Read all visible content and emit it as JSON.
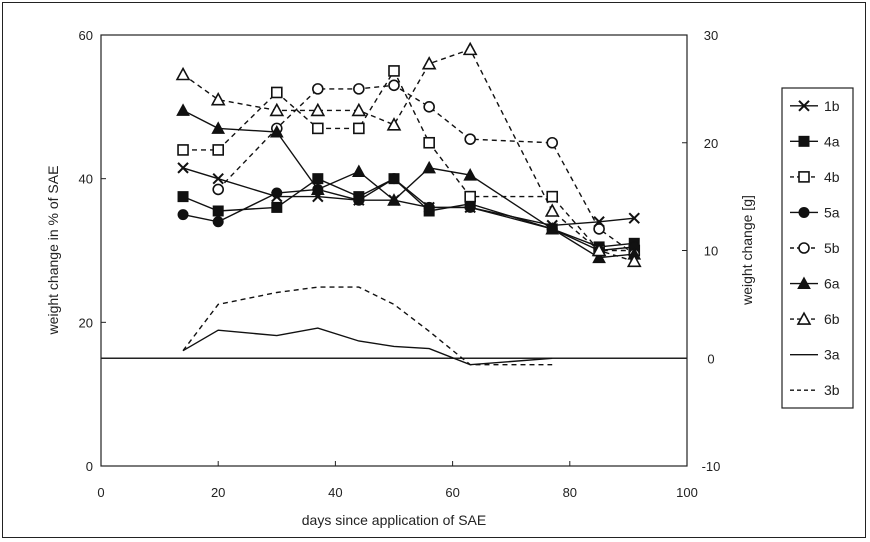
{
  "chart_data": {
    "type": "line",
    "xlabel": "days since application of SAE",
    "ylabel": "weight change in % of SAE",
    "y2label": "weight change [g]",
    "xlim": [
      0,
      100
    ],
    "ylim": [
      0,
      60
    ],
    "y2lim": [
      -10,
      30
    ],
    "xticks": [
      "0",
      "20",
      "40",
      "60",
      "80",
      "100"
    ],
    "yticks": [
      "0",
      "20",
      "40",
      "60"
    ],
    "y2ticks": [
      "-10",
      "0",
      "10",
      "20",
      "30"
    ],
    "grid": false,
    "legend_position": "right",
    "series": [
      {
        "name": "1b",
        "axis": "left",
        "marker": "x",
        "dash": false,
        "x": [
          14,
          20,
          30,
          37,
          44,
          50,
          56,
          63,
          77,
          85,
          91
        ],
        "y": [
          41.5,
          40,
          37.5,
          37.5,
          37,
          37,
          36,
          36,
          33.5,
          34,
          34.5
        ]
      },
      {
        "name": "4a",
        "axis": "left",
        "marker": "square-filled",
        "dash": false,
        "x": [
          14,
          20,
          30,
          37,
          44,
          50,
          56,
          63,
          77,
          85,
          91
        ],
        "y": [
          37.5,
          35.5,
          36,
          40,
          37.5,
          40,
          35.5,
          36.5,
          33,
          30.5,
          31
        ]
      },
      {
        "name": "4b",
        "axis": "left",
        "marker": "square-open",
        "dash": true,
        "x": [
          14,
          20,
          30,
          37,
          44,
          50,
          56,
          63,
          77,
          85,
          91
        ],
        "y": [
          44,
          44,
          52,
          47,
          47,
          55,
          45,
          37.5,
          37.5,
          30,
          30
        ]
      },
      {
        "name": "5a",
        "axis": "left",
        "marker": "circle-filled",
        "dash": false,
        "x": [
          14,
          20,
          30,
          37,
          44,
          50,
          56,
          63,
          77,
          85,
          91
        ],
        "y": [
          35,
          34,
          38,
          38.5,
          37,
          40,
          36,
          36,
          33,
          30,
          30.5
        ]
      },
      {
        "name": "5b",
        "axis": "left",
        "marker": "circle-open",
        "dash": true,
        "x": [
          20,
          30,
          37,
          44,
          50,
          56,
          63,
          77,
          85,
          91
        ],
        "y": [
          38.5,
          47,
          52.5,
          52.5,
          53,
          50,
          45.5,
          45,
          33,
          29.5
        ]
      },
      {
        "name": "6a",
        "axis": "left",
        "marker": "triangle-filled",
        "dash": false,
        "x": [
          14,
          20,
          30,
          37,
          44,
          50,
          56,
          63,
          77,
          85,
          91
        ],
        "y": [
          49.5,
          47,
          46.5,
          38.5,
          41,
          37,
          41.5,
          40.5,
          33,
          29,
          29.5
        ]
      },
      {
        "name": "6b",
        "axis": "left",
        "marker": "triangle-open",
        "dash": true,
        "x": [
          14,
          20,
          30,
          37,
          44,
          50,
          56,
          63,
          77,
          85,
          91
        ],
        "y": [
          54.5,
          51,
          49.5,
          49.5,
          49.5,
          47.5,
          56,
          58,
          35.5,
          30,
          28.5
        ]
      },
      {
        "name": "3a",
        "axis": "right",
        "marker": "none",
        "dash": false,
        "x": [
          14,
          20,
          30,
          37,
          44,
          50,
          56,
          63,
          77
        ],
        "y": [
          0.7,
          2.6,
          2.1,
          2.8,
          1.6,
          1.1,
          0.9,
          -0.6,
          0
        ]
      },
      {
        "name": "3b",
        "axis": "right",
        "marker": "none",
        "dash": true,
        "x": [
          14,
          20,
          30,
          37,
          44,
          50,
          56,
          63,
          77
        ],
        "y": [
          0.7,
          5,
          6.1,
          6.6,
          6.6,
          5,
          2.5,
          -0.6,
          -0.6
        ]
      }
    ]
  }
}
